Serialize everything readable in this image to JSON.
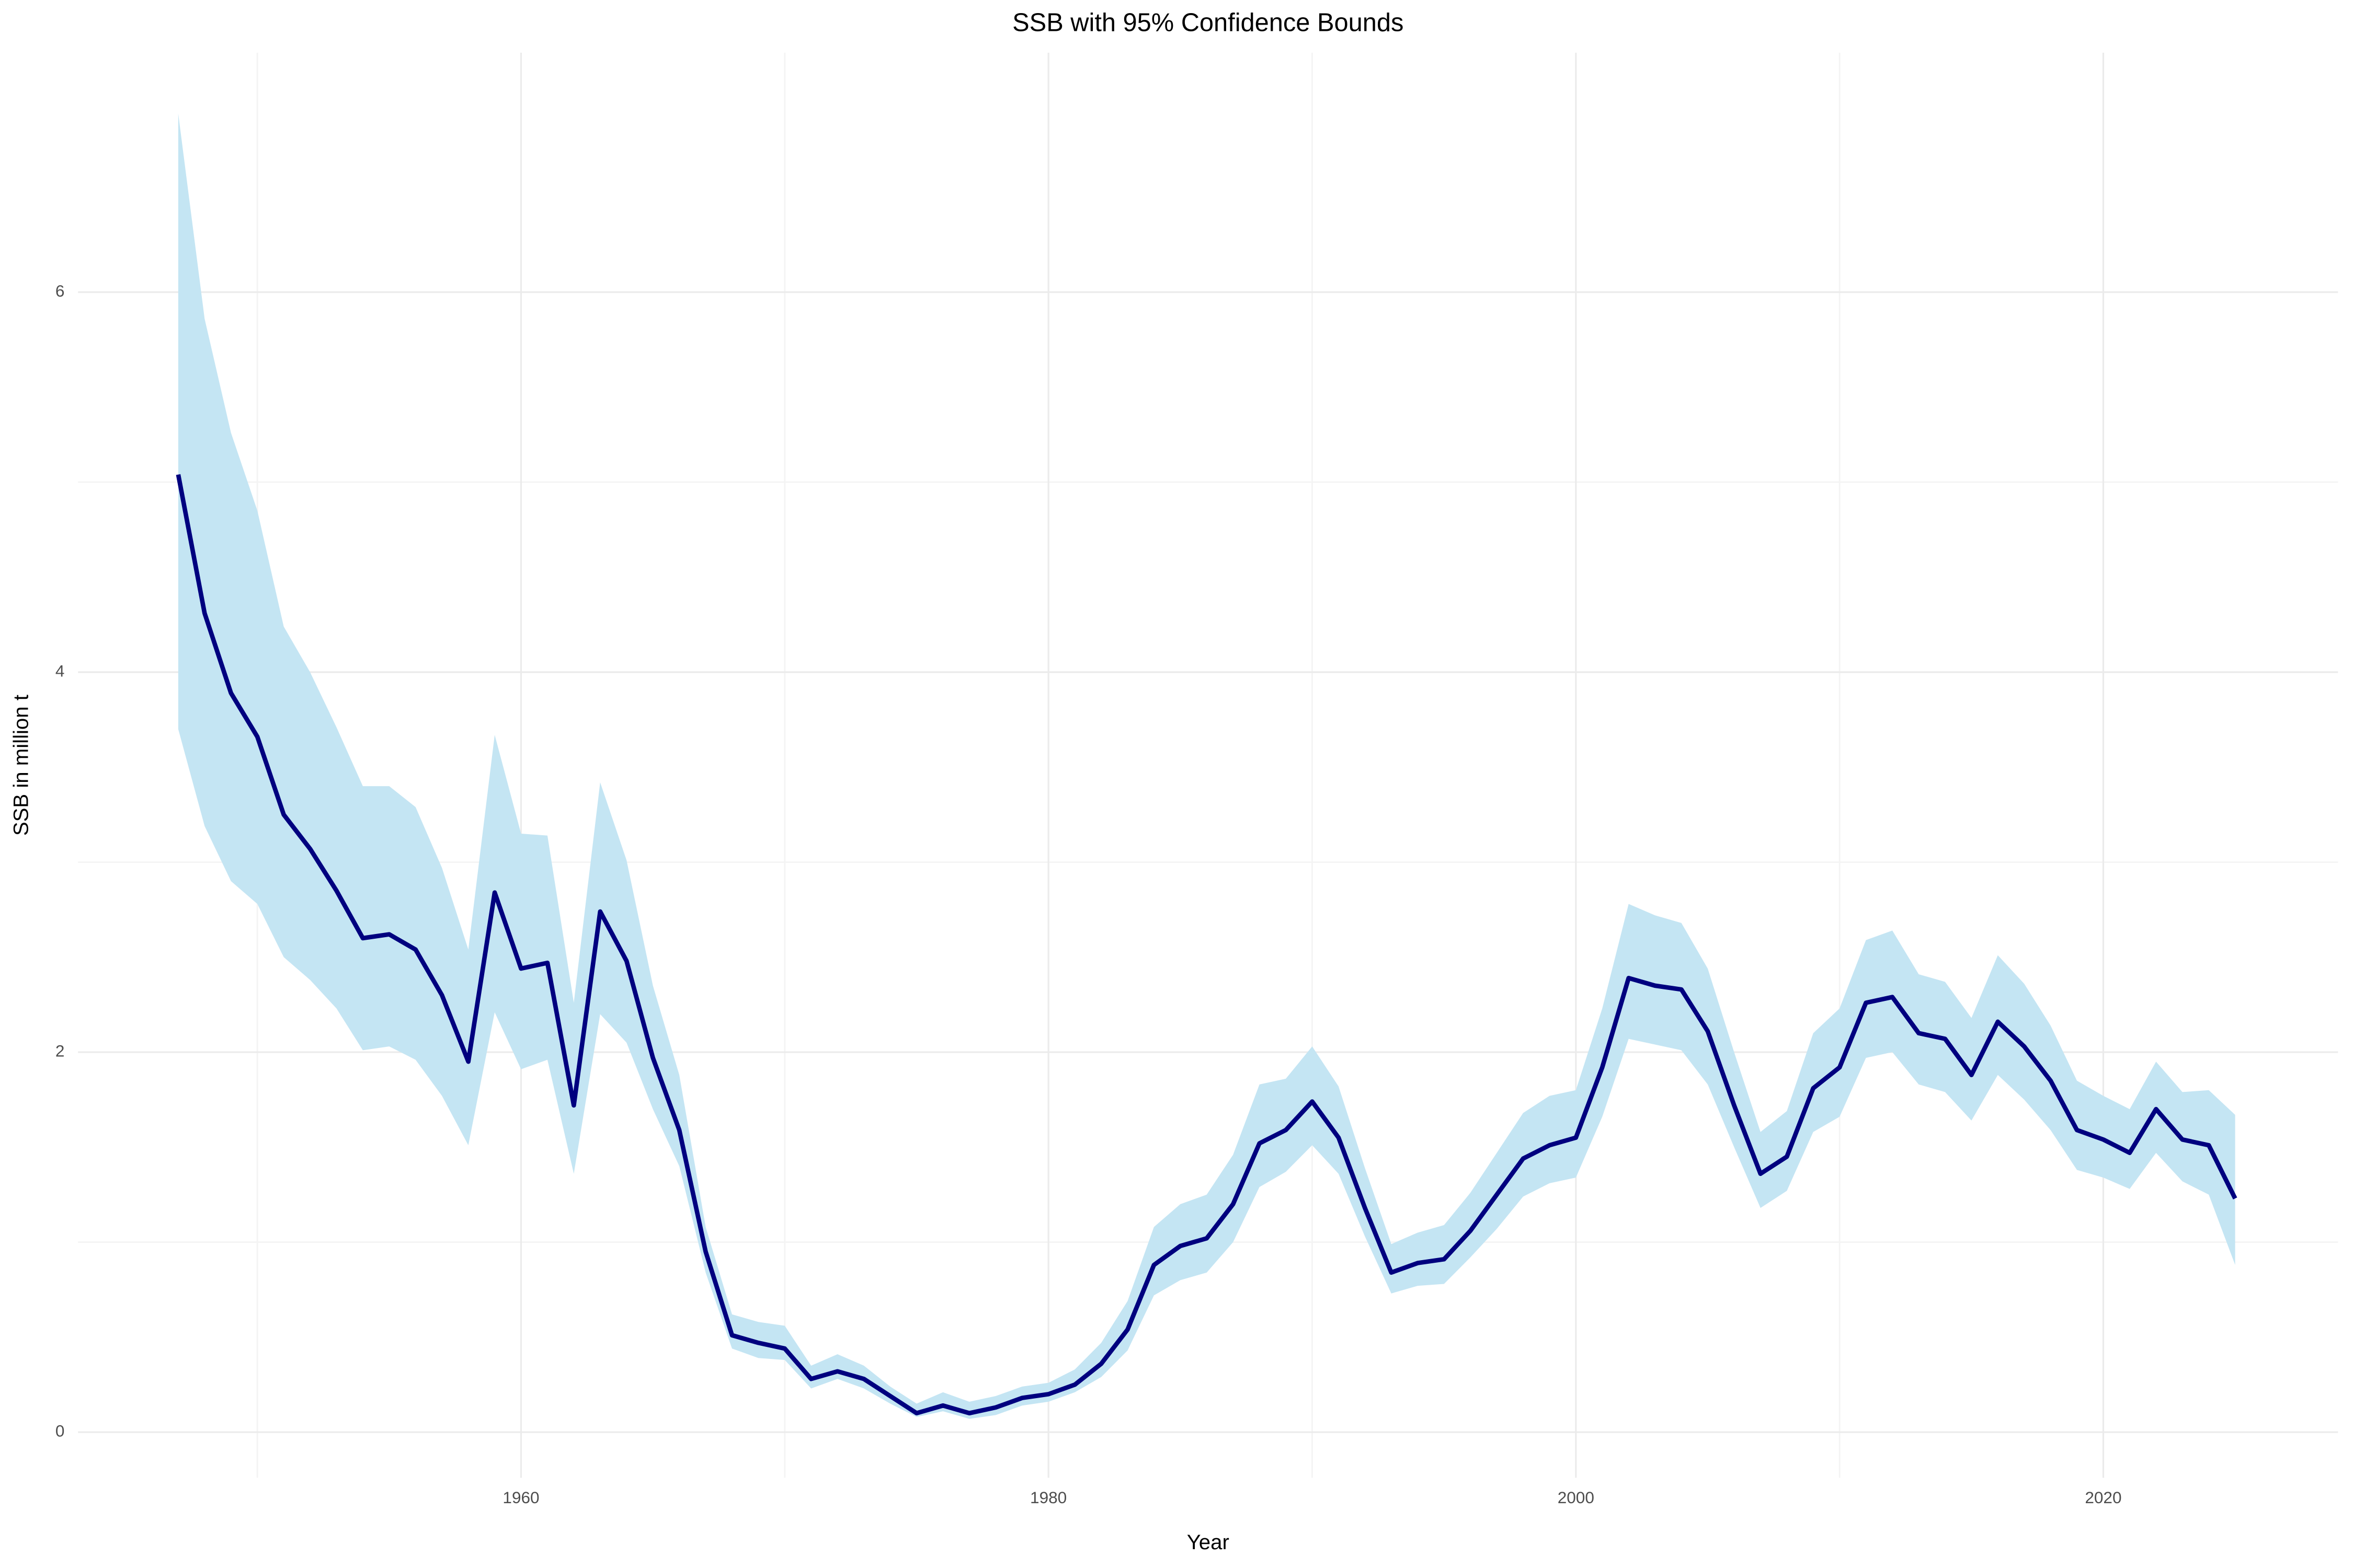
{
  "chart_data": {
    "type": "line",
    "title": "SSB with 95% Confidence Bounds",
    "x_label": "Year",
    "y_label": "SSB in million t",
    "x": [
      1947,
      1948,
      1949,
      1950,
      1951,
      1952,
      1953,
      1954,
      1955,
      1956,
      1957,
      1958,
      1959,
      1960,
      1961,
      1962,
      1963,
      1964,
      1965,
      1966,
      1967,
      1968,
      1969,
      1970,
      1971,
      1972,
      1973,
      1974,
      1975,
      1976,
      1977,
      1978,
      1979,
      1980,
      1981,
      1982,
      1983,
      1984,
      1985,
      1986,
      1987,
      1988,
      1989,
      1990,
      1991,
      1992,
      1993,
      1994,
      1995,
      1996,
      1997,
      1998,
      1999,
      2000,
      2001,
      2002,
      2003,
      2004,
      2005,
      2006,
      2007,
      2008,
      2009,
      2010,
      2011,
      2012,
      2013,
      2014,
      2015,
      2016,
      2017,
      2018,
      2019,
      2020,
      2021,
      2022,
      2023,
      2024,
      2025
    ],
    "values": [
      5.04,
      4.31,
      3.89,
      3.66,
      3.25,
      3.07,
      2.85,
      2.6,
      2.62,
      2.54,
      2.3,
      1.95,
      2.84,
      2.44,
      2.47,
      1.72,
      2.74,
      2.48,
      1.97,
      1.59,
      0.95,
      0.51,
      0.47,
      0.44,
      0.28,
      0.32,
      0.28,
      0.19,
      0.1,
      0.14,
      0.1,
      0.13,
      0.18,
      0.2,
      0.25,
      0.36,
      0.54,
      0.88,
      0.98,
      1.02,
      1.2,
      1.52,
      1.59,
      1.74,
      1.55,
      1.18,
      0.84,
      0.89,
      0.91,
      1.06,
      1.25,
      1.44,
      1.51,
      1.55,
      1.92,
      2.39,
      2.35,
      2.33,
      2.11,
      1.72,
      1.36,
      1.45,
      1.81,
      1.92,
      2.26,
      2.29,
      2.1,
      2.07,
      1.88,
      2.16,
      2.03,
      1.85,
      1.59,
      1.54,
      1.47,
      1.7,
      1.54,
      1.51,
      1.23
    ],
    "upper": [
      6.94,
      5.86,
      5.26,
      4.85,
      4.24,
      4.0,
      3.71,
      3.4,
      3.4,
      3.29,
      2.97,
      2.54,
      3.67,
      3.15,
      3.14,
      2.26,
      3.42,
      3.01,
      2.35,
      1.88,
      1.08,
      0.62,
      0.58,
      0.56,
      0.35,
      0.41,
      0.35,
      0.24,
      0.15,
      0.21,
      0.16,
      0.19,
      0.24,
      0.26,
      0.33,
      0.47,
      0.69,
      1.08,
      1.2,
      1.25,
      1.46,
      1.83,
      1.86,
      2.03,
      1.82,
      1.39,
      0.99,
      1.05,
      1.09,
      1.26,
      1.47,
      1.68,
      1.77,
      1.8,
      2.23,
      2.78,
      2.72,
      2.68,
      2.44,
      2.0,
      1.58,
      1.69,
      2.1,
      2.23,
      2.59,
      2.64,
      2.41,
      2.37,
      2.18,
      2.51,
      2.36,
      2.14,
      1.85,
      1.77,
      1.7,
      1.95,
      1.79,
      1.8,
      1.67
    ],
    "lower": [
      3.7,
      3.19,
      2.9,
      2.78,
      2.5,
      2.38,
      2.23,
      2.01,
      2.03,
      1.96,
      1.77,
      1.51,
      2.21,
      1.91,
      1.96,
      1.36,
      2.2,
      2.05,
      1.7,
      1.4,
      0.84,
      0.44,
      0.39,
      0.38,
      0.23,
      0.28,
      0.23,
      0.15,
      0.08,
      0.11,
      0.07,
      0.09,
      0.14,
      0.16,
      0.21,
      0.29,
      0.43,
      0.72,
      0.8,
      0.84,
      1.0,
      1.29,
      1.37,
      1.51,
      1.36,
      1.03,
      0.73,
      0.77,
      0.78,
      0.92,
      1.07,
      1.24,
      1.31,
      1.34,
      1.66,
      2.07,
      2.04,
      2.01,
      1.83,
      1.5,
      1.18,
      1.27,
      1.58,
      1.66,
      1.97,
      2.0,
      1.83,
      1.79,
      1.64,
      1.88,
      1.75,
      1.59,
      1.38,
      1.34,
      1.28,
      1.47,
      1.32,
      1.25,
      0.88
    ],
    "color": "#00007f",
    "band_color": "#c4e5f3",
    "xlim": [
      1943.2,
      2028.9
    ],
    "ylim": [
      -0.24,
      7.26
    ],
    "xticks": [
      1960,
      1980,
      2000,
      2020
    ],
    "yticks": [
      0,
      2,
      4,
      6
    ],
    "x_minor_ticks": [
      1950,
      1970,
      1990,
      2010
    ],
    "y_minor_ticks": [
      1,
      3,
      5
    ],
    "grid": true
  }
}
